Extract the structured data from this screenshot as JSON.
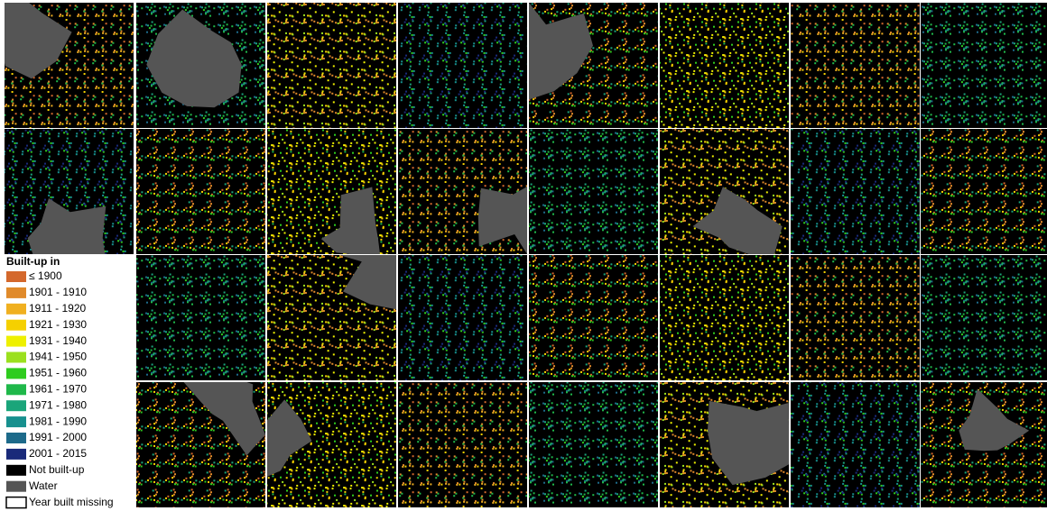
{
  "legend": {
    "title": "Built-up in",
    "items": [
      {
        "label": "≤ 1900",
        "color": "#d4682c"
      },
      {
        "label": "1901 - 1910",
        "color": "#e08a2a"
      },
      {
        "label": "1911 - 1920",
        "color": "#f0b020"
      },
      {
        "label": "1921 - 1930",
        "color": "#f5d000"
      },
      {
        "label": "1931 - 1940",
        "color": "#eef000"
      },
      {
        "label": "1941 - 1950",
        "color": "#9be01e"
      },
      {
        "label": "1951 - 1960",
        "color": "#2ecc1e"
      },
      {
        "label": "1961 - 1970",
        "color": "#1fb84a"
      },
      {
        "label": "1971 - 1980",
        "color": "#1aa57a"
      },
      {
        "label": "1981 - 1990",
        "color": "#17908e"
      },
      {
        "label": "1991 - 2000",
        "color": "#1d6a8a"
      },
      {
        "label": "2001 - 2015",
        "color": "#1a2a7a"
      },
      {
        "label": "Not built-up",
        "color": "#000000"
      },
      {
        "label": "Water",
        "color": "#555555"
      },
      {
        "label": "Year built missing",
        "color": "#ffffff"
      }
    ]
  }
}
